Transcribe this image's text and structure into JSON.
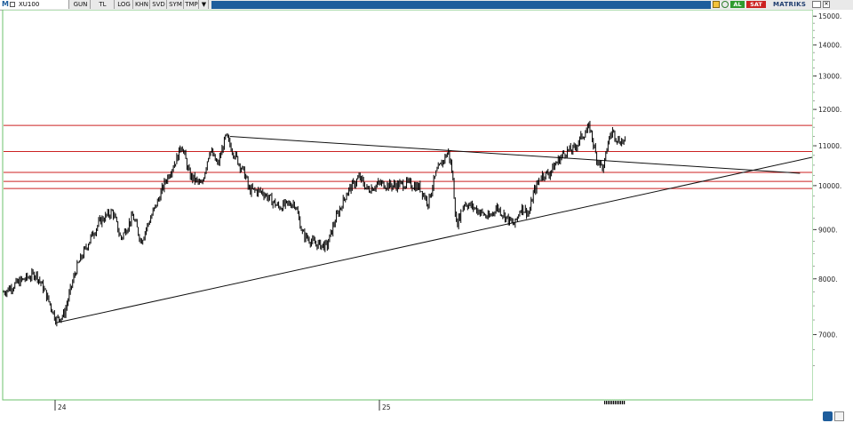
{
  "toolbar": {
    "symbol_letter": "M",
    "symbol": "XU100",
    "buttons": [
      "GUN",
      "TL",
      "LOG",
      "KHN",
      "SVD",
      "SYM",
      "TMP"
    ],
    "al_label": "AL",
    "sat_label": "SAT",
    "brand": "MATRIKS",
    "colors": {
      "al": "#2e9a2e",
      "sat": "#cc2222",
      "bar": "#1e5d9c"
    }
  },
  "chart_data": {
    "type": "line",
    "x_tick_labels": [
      "24",
      "25"
    ],
    "y_ticks": [
      7000,
      8000,
      9000,
      10000,
      11000,
      12000,
      13000,
      14000,
      15000
    ],
    "y_tick_labels": [
      "7000.",
      "8000.",
      "9000.",
      "10000.",
      "11000.",
      "12000.",
      "13000.",
      "14000.",
      "15000."
    ],
    "ylim": [
      6000,
      15200
    ],
    "ylog": true,
    "xlim": [
      0,
      100
    ],
    "series_color": "#000000",
    "anchors": [
      [
        0,
        7750
      ],
      [
        2,
        7950
      ],
      [
        4,
        8100
      ],
      [
        5,
        7800
      ],
      [
        6.5,
        7250
      ],
      [
        7.5,
        7350
      ],
      [
        9,
        8200
      ],
      [
        11,
        8900
      ],
      [
        12,
        9200
      ],
      [
        13.5,
        9400
      ],
      [
        14.5,
        8800
      ],
      [
        16,
        9300
      ],
      [
        17,
        8750
      ],
      [
        19,
        9600
      ],
      [
        20,
        10100
      ],
      [
        21.5,
        10700
      ],
      [
        22,
        11050
      ],
      [
        23,
        10250
      ],
      [
        24.5,
        10000
      ],
      [
        25.5,
        10900
      ],
      [
        26.5,
        10500
      ],
      [
        27.5,
        11250
      ],
      [
        28.5,
        10800
      ],
      [
        30,
        10200
      ],
      [
        30.3,
        9900
      ],
      [
        32,
        9850
      ],
      [
        34,
        9500
      ],
      [
        36,
        9600
      ],
      [
        37,
        8900
      ],
      [
        38.5,
        8700
      ],
      [
        40,
        8650
      ],
      [
        41,
        9200
      ],
      [
        42.5,
        9850
      ],
      [
        44,
        10200
      ],
      [
        45,
        9900
      ],
      [
        46.5,
        10050
      ],
      [
        48,
        10000
      ],
      [
        50,
        10050
      ],
      [
        51.5,
        9950
      ],
      [
        52.5,
        9600
      ],
      [
        53.5,
        10300
      ],
      [
        55,
        10850
      ],
      [
        55.5,
        10300
      ],
      [
        56,
        9100
      ],
      [
        57,
        9600
      ],
      [
        58.5,
        9450
      ],
      [
        60,
        9250
      ],
      [
        61,
        9500
      ],
      [
        62.5,
        9200
      ],
      [
        63.2,
        9100
      ],
      [
        64,
        9500
      ],
      [
        65,
        9350
      ],
      [
        65.5,
        9800
      ],
      [
        66.5,
        10250
      ],
      [
        67.5,
        10300
      ],
      [
        68.5,
        10600
      ],
      [
        69.5,
        10850
      ],
      [
        70.5,
        10900
      ],
      [
        71.5,
        11250
      ],
      [
        72.5,
        11500
      ],
      [
        73.3,
        10700
      ],
      [
        74.2,
        10400
      ],
      [
        74.8,
        11150
      ],
      [
        75.3,
        11400
      ],
      [
        76,
        11150
      ],
      [
        77,
        11100
      ]
    ],
    "horizontal_lines": [
      11550,
      10850,
      10320,
      10100,
      9930
    ],
    "horizontal_line_color": "#cc2222",
    "trend_lines": [
      {
        "x1": 6.5,
        "y1": 7200,
        "x2": 100,
        "y2": 10700
      },
      {
        "x1": 28,
        "y1": 11250,
        "x2": 98.5,
        "y2": 10300
      }
    ],
    "x_marker_color": "#000000"
  }
}
